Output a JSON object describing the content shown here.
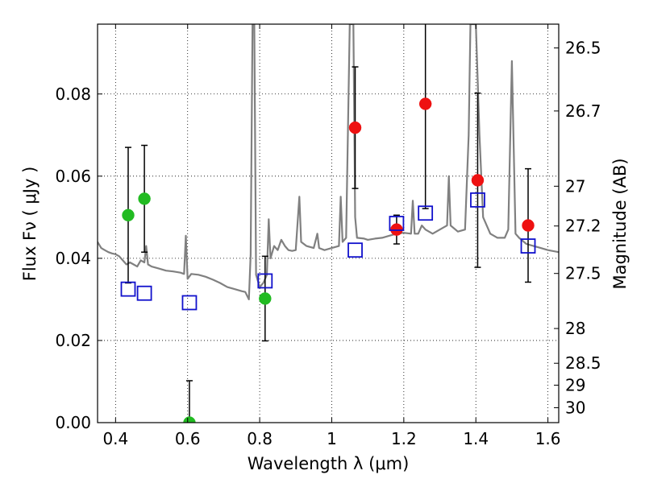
{
  "chart_data": {
    "type": "scatter",
    "xlabel": "Wavelength  λ (μm)",
    "ylabel": "Flux  Fν  ( μJy )",
    "y2label": "Magnitude (AB)",
    "xlim": [
      0.35,
      1.63
    ],
    "ylim": [
      0.0,
      0.097
    ],
    "grid": true,
    "colors": {
      "model": "#808080",
      "green": "#22bb22",
      "red": "#ee1111",
      "blue": "#1111cc"
    },
    "x_tick_labels": [
      {
        "value": 0.4,
        "label": "0.4"
      },
      {
        "value": 0.6,
        "label": "0.6"
      },
      {
        "value": 0.8,
        "label": "0.8"
      },
      {
        "value": 1.0,
        "label": "1"
      },
      {
        "value": 1.2,
        "label": "1.2"
      },
      {
        "value": 1.4,
        "label": "1.4"
      },
      {
        "value": 1.6,
        "label": "1.6"
      }
    ],
    "y_tick_labels": [
      {
        "value": 0.0,
        "label": "0.00"
      },
      {
        "value": 0.02,
        "label": "0.02"
      },
      {
        "value": 0.04,
        "label": "0.04"
      },
      {
        "value": 0.06,
        "label": "0.06"
      },
      {
        "value": 0.08,
        "label": "0.08"
      }
    ],
    "mag_tick_labels": [
      {
        "value": 26.5,
        "label": "26.5"
      },
      {
        "value": 26.7,
        "label": "26.7"
      },
      {
        "value": 27.0,
        "label": "27"
      },
      {
        "value": 27.2,
        "label": "27.2"
      },
      {
        "value": 27.5,
        "label": "27.5"
      },
      {
        "value": 28.0,
        "label": "28"
      },
      {
        "value": 28.5,
        "label": "28.5"
      },
      {
        "value": 29.0,
        "label": "29"
      },
      {
        "value": 30.0,
        "label": "30"
      }
    ],
    "model_spectrum": [
      [
        0.35,
        0.044
      ],
      [
        0.36,
        0.0425
      ],
      [
        0.37,
        0.042
      ],
      [
        0.38,
        0.0415
      ],
      [
        0.39,
        0.0412
      ],
      [
        0.4,
        0.041
      ],
      [
        0.41,
        0.0405
      ],
      [
        0.42,
        0.0395
      ],
      [
        0.43,
        0.0385
      ],
      [
        0.44,
        0.039
      ],
      [
        0.45,
        0.0385
      ],
      [
        0.46,
        0.038
      ],
      [
        0.47,
        0.0395
      ],
      [
        0.48,
        0.039
      ],
      [
        0.485,
        0.043
      ],
      [
        0.49,
        0.0385
      ],
      [
        0.5,
        0.038
      ],
      [
        0.52,
        0.0375
      ],
      [
        0.54,
        0.037
      ],
      [
        0.56,
        0.0368
      ],
      [
        0.58,
        0.0365
      ],
      [
        0.59,
        0.0362
      ],
      [
        0.595,
        0.0455
      ],
      [
        0.6,
        0.035
      ],
      [
        0.61,
        0.0362
      ],
      [
        0.63,
        0.036
      ],
      [
        0.65,
        0.0355
      ],
      [
        0.67,
        0.0348
      ],
      [
        0.69,
        0.034
      ],
      [
        0.71,
        0.033
      ],
      [
        0.73,
        0.0325
      ],
      [
        0.75,
        0.032
      ],
      [
        0.76,
        0.0318
      ],
      [
        0.77,
        0.03
      ],
      [
        0.775,
        0.041
      ],
      [
        0.78,
        0.097
      ],
      [
        0.785,
        0.097
      ],
      [
        0.79,
        0.036
      ],
      [
        0.8,
        0.033
      ],
      [
        0.81,
        0.034
      ],
      [
        0.82,
        0.036
      ],
      [
        0.825,
        0.0495
      ],
      [
        0.83,
        0.04
      ],
      [
        0.84,
        0.043
      ],
      [
        0.85,
        0.042
      ],
      [
        0.86,
        0.0445
      ],
      [
        0.87,
        0.043
      ],
      [
        0.88,
        0.042
      ],
      [
        0.89,
        0.0418
      ],
      [
        0.9,
        0.042
      ],
      [
        0.91,
        0.055
      ],
      [
        0.915,
        0.044
      ],
      [
        0.93,
        0.043
      ],
      [
        0.95,
        0.0425
      ],
      [
        0.96,
        0.046
      ],
      [
        0.965,
        0.0425
      ],
      [
        0.98,
        0.042
      ],
      [
        1.0,
        0.0425
      ],
      [
        1.02,
        0.043
      ],
      [
        1.025,
        0.055
      ],
      [
        1.03,
        0.044
      ],
      [
        1.04,
        0.045
      ],
      [
        1.05,
        0.097
      ],
      [
        1.06,
        0.097
      ],
      [
        1.065,
        0.05
      ],
      [
        1.07,
        0.045
      ],
      [
        1.09,
        0.0448
      ],
      [
        1.1,
        0.0445
      ],
      [
        1.12,
        0.0448
      ],
      [
        1.14,
        0.045
      ],
      [
        1.16,
        0.0455
      ],
      [
        1.18,
        0.046
      ],
      [
        1.2,
        0.0462
      ],
      [
        1.22,
        0.046
      ],
      [
        1.225,
        0.054
      ],
      [
        1.23,
        0.046
      ],
      [
        1.24,
        0.046
      ],
      [
        1.25,
        0.048
      ],
      [
        1.26,
        0.047
      ],
      [
        1.28,
        0.046
      ],
      [
        1.3,
        0.047
      ],
      [
        1.32,
        0.048
      ],
      [
        1.325,
        0.06
      ],
      [
        1.33,
        0.048
      ],
      [
        1.35,
        0.0465
      ],
      [
        1.37,
        0.047
      ],
      [
        1.38,
        0.07
      ],
      [
        1.385,
        0.097
      ],
      [
        1.39,
        0.097
      ],
      [
        1.395,
        0.097
      ],
      [
        1.4,
        0.097
      ],
      [
        1.41,
        0.07
      ],
      [
        1.42,
        0.05
      ],
      [
        1.44,
        0.046
      ],
      [
        1.46,
        0.045
      ],
      [
        1.48,
        0.045
      ],
      [
        1.49,
        0.047
      ],
      [
        1.5,
        0.088
      ],
      [
        1.51,
        0.046
      ],
      [
        1.52,
        0.045
      ],
      [
        1.54,
        0.0435
      ],
      [
        1.56,
        0.043
      ],
      [
        1.58,
        0.0425
      ],
      [
        1.6,
        0.042
      ],
      [
        1.63,
        0.0415
      ]
    ],
    "series": [
      {
        "name": "green",
        "marker": "circle",
        "points": [
          {
            "x": 0.435,
            "y": 0.0505,
            "err": 0.0165
          },
          {
            "x": 0.48,
            "y": 0.0545,
            "err": 0.013
          },
          {
            "x": 0.605,
            "y": 0.0,
            "err": 0.0102
          },
          {
            "x": 0.815,
            "y": 0.0302,
            "err": 0.0103
          }
        ]
      },
      {
        "name": "red",
        "marker": "circle",
        "points": [
          {
            "x": 1.065,
            "y": 0.0718,
            "err": 0.0148
          },
          {
            "x": 1.18,
            "y": 0.047,
            "err": 0.0035
          },
          {
            "x": 1.26,
            "y": 0.0776,
            "err": 0.0255
          },
          {
            "x": 1.405,
            "y": 0.059,
            "err": 0.0212
          },
          {
            "x": 1.545,
            "y": 0.048,
            "err": 0.0138
          }
        ]
      },
      {
        "name": "blue",
        "marker": "square",
        "points": [
          {
            "x": 0.435,
            "y": 0.0325
          },
          {
            "x": 0.48,
            "y": 0.0315
          },
          {
            "x": 0.605,
            "y": 0.0292
          },
          {
            "x": 0.815,
            "y": 0.0345
          },
          {
            "x": 1.065,
            "y": 0.042
          },
          {
            "x": 1.18,
            "y": 0.0485
          },
          {
            "x": 1.26,
            "y": 0.051
          },
          {
            "x": 1.405,
            "y": 0.0542
          },
          {
            "x": 1.545,
            "y": 0.043
          }
        ]
      }
    ]
  }
}
